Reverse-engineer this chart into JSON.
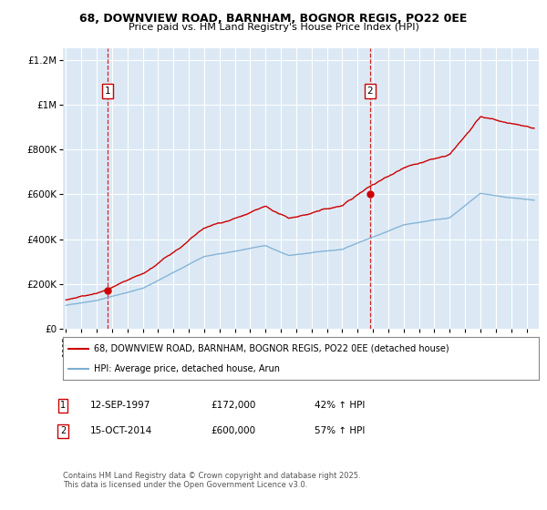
{
  "title_line1": "68, DOWNVIEW ROAD, BARNHAM, BOGNOR REGIS, PO22 0EE",
  "title_line2": "Price paid vs. HM Land Registry's House Price Index (HPI)",
  "legend_label1": "68, DOWNVIEW ROAD, BARNHAM, BOGNOR REGIS, PO22 0EE (detached house)",
  "legend_label2": "HPI: Average price, detached house, Arun",
  "sale1_date": "12-SEP-1997",
  "sale1_price": 172000,
  "sale1_hpi_pct": "42% ↑ HPI",
  "sale2_date": "15-OCT-2014",
  "sale2_price": 600000,
  "sale2_hpi_pct": "57% ↑ HPI",
  "sale1_year": 1997.7,
  "sale2_year": 2014.79,
  "ylim_max": 1250000,
  "ylim_min": 0,
  "xlim_min": 1994.8,
  "xlim_max": 2025.8,
  "red_color": "#cc0000",
  "blue_color": "#7bafd4",
  "bg_color": "#dce9f5",
  "grid_color": "#ffffff",
  "fig_bg": "#f0f0f0",
  "footnote": "Contains HM Land Registry data © Crown copyright and database right 2025.\nThis data is licensed under the Open Government Licence v3.0."
}
